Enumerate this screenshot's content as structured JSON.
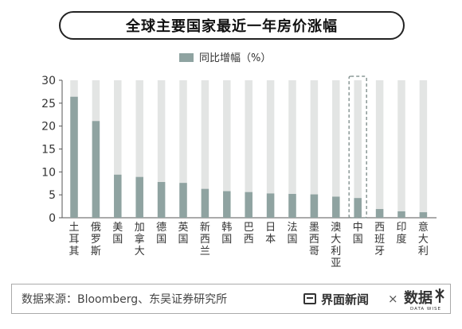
{
  "title": "全球主要国家最近一年房价涨幅",
  "source": "数据来源：Bloomberg、东吴证券研究所",
  "brand": {
    "name": "界面新闻",
    "times": "×",
    "logo_text": "数据",
    "logo_sub": "DATA WISE"
  },
  "colors": {
    "bar": "#8fa3a1",
    "track": "#e3e5e4",
    "highlight_border": "#8a9896"
  },
  "chart_data": {
    "type": "bar",
    "legend": [
      "同比增幅（%）"
    ],
    "legend_position": "top-center",
    "ylim": [
      0,
      30
    ],
    "yticks": [
      0,
      5,
      10,
      15,
      20,
      25,
      30
    ],
    "grid": false,
    "categories": [
      "土耳其",
      "俄罗斯",
      "美国",
      "加拿大",
      "德国",
      "英国",
      "新西兰",
      "韩国",
      "巴西",
      "日本",
      "法国",
      "墨西哥",
      "澳大利亚",
      "中国",
      "西班牙",
      "印度",
      "意大利"
    ],
    "values": [
      26.4,
      21.1,
      9.4,
      8.9,
      7.8,
      7.6,
      6.3,
      5.8,
      5.6,
      5.3,
      5.2,
      5.1,
      4.6,
      4.3,
      1.9,
      1.4,
      1.2
    ],
    "highlight": "中国"
  }
}
